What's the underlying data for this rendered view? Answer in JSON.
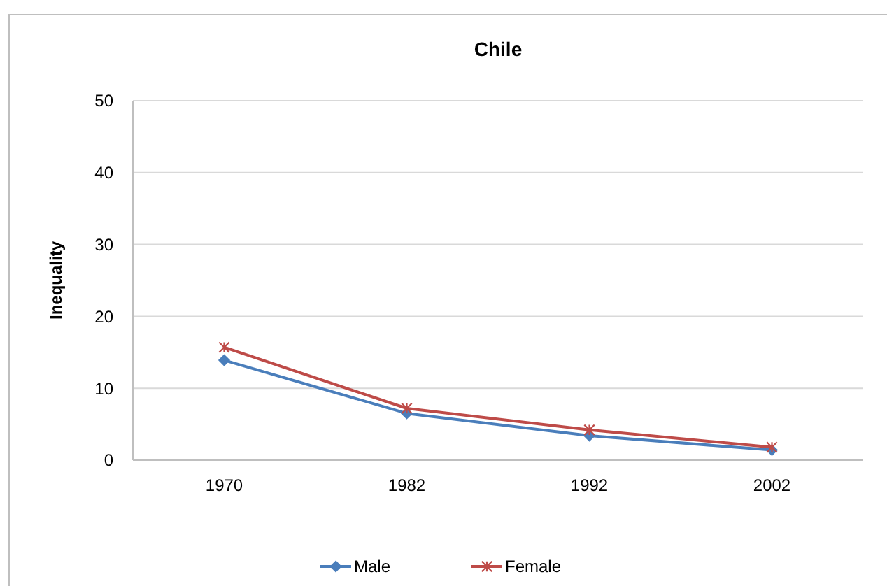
{
  "chart_data": {
    "type": "line",
    "title": "Chile",
    "ylabel": "Inequality",
    "categories": [
      "1970",
      "1982",
      "1992",
      "2002"
    ],
    "series": [
      {
        "name": "Male",
        "color": "#4a7ebb",
        "marker": "diamond",
        "values": [
          13.9,
          6.5,
          3.4,
          1.4
        ]
      },
      {
        "name": "Female",
        "color": "#be4b48",
        "marker": "cross",
        "values": [
          15.7,
          7.2,
          4.2,
          1.8
        ]
      }
    ],
    "ylim": [
      0,
      50
    ],
    "yticks": [
      0,
      10,
      20,
      30,
      40,
      50
    ],
    "grid": "y",
    "legend": "bottom",
    "line_style": "solid"
  }
}
